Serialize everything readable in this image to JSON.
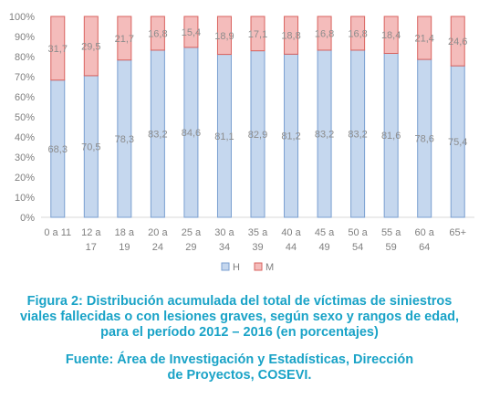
{
  "chart_data": {
    "type": "bar",
    "stacked": true,
    "categories": [
      [
        "0 a 11"
      ],
      [
        "12 a",
        "17"
      ],
      [
        "18 a",
        "19"
      ],
      [
        "20 a",
        "24"
      ],
      [
        "25 a",
        "29"
      ],
      [
        "30 a",
        "34"
      ],
      [
        "35 a",
        "39"
      ],
      [
        "40 a",
        "44"
      ],
      [
        "45 a",
        "49"
      ],
      [
        "50 a",
        "54"
      ],
      [
        "55 a",
        "59"
      ],
      [
        "60 a",
        "64"
      ],
      [
        "65+"
      ]
    ],
    "series": [
      {
        "name": "H",
        "color": "#c5d7ee",
        "border": "#7a9fd0",
        "values": [
          68.3,
          70.5,
          78.3,
          83.2,
          84.6,
          81.1,
          82.9,
          81.2,
          83.2,
          83.2,
          81.6,
          78.6,
          75.4
        ],
        "labels": [
          "68,3",
          "70,5",
          "78,3",
          "83,2",
          "84,6",
          "81,1",
          "82,9",
          "81,2",
          "83,2",
          "83,2",
          "81,6",
          "78,6",
          "75,4"
        ]
      },
      {
        "name": "M",
        "color": "#f4bcbb",
        "border": "#d9635f",
        "values": [
          31.7,
          29.5,
          21.7,
          16.8,
          15.4,
          18.9,
          17.1,
          18.8,
          16.8,
          16.8,
          18.4,
          21.4,
          24.6
        ],
        "labels": [
          "31,7",
          "29,5",
          "21,7",
          "16,8",
          "15,4",
          "18,9",
          "17,1",
          "18,8",
          "16,8",
          "16,8",
          "18,4",
          "21,4",
          "24,6"
        ]
      }
    ],
    "y_ticks": [
      "0%",
      "10%",
      "20%",
      "30%",
      "40%",
      "50%",
      "60%",
      "70%",
      "80%",
      "90%",
      "100%"
    ],
    "ylim": [
      0,
      100
    ],
    "grid": false,
    "legend_position": "bottom"
  },
  "caption": {
    "title_lines": [
      "Figura 2: Distribución acumulada del total de víctimas de siniestros",
      "viales fallecidas o con lesiones graves, según sexo y rangos de edad,",
      "para el período 2012 – 2016 (en porcentajes)"
    ],
    "source_lines": [
      "Fuente: Área de Investigación y Estadísticas, Dirección",
      "de Proyectos, COSEVI."
    ]
  }
}
